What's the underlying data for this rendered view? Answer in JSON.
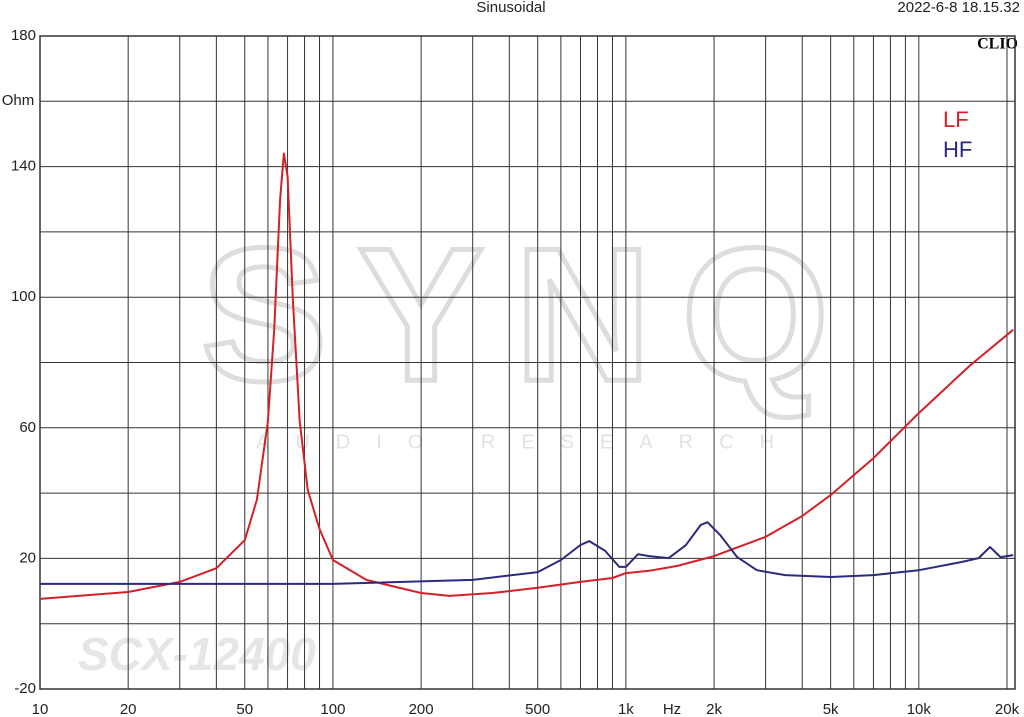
{
  "chart_data": {
    "type": "line",
    "title": "Sinusoidal",
    "timestamp": "2022-6-8 18.15.32",
    "brand": "CLIO",
    "watermark": "SYNQ",
    "watermark_subtitle": "AUDIO RESEARCH",
    "model": "SCX-12400",
    "x_label": "Hz",
    "y_label": "Ohm",
    "xscale": "log",
    "xlim": [
      10,
      21300
    ],
    "ylim": [
      -20,
      180
    ],
    "xticks": [
      10,
      20,
      50,
      100,
      200,
      500,
      {
        "value": 1000,
        "label": "1k"
      },
      {
        "value": 2000,
        "label": "2k"
      },
      {
        "value": 5000,
        "label": "5k"
      },
      {
        "value": 10000,
        "label": "10k"
      },
      {
        "value": 20000,
        "label": "20k"
      }
    ],
    "yticks": [
      -20,
      20,
      60,
      100,
      140,
      180
    ],
    "xgrid": [
      10,
      20,
      30,
      40,
      50,
      60,
      70,
      80,
      90,
      100,
      200,
      300,
      400,
      500,
      600,
      700,
      800,
      900,
      1000,
      2000,
      3000,
      4000,
      5000,
      6000,
      7000,
      8000,
      9000,
      10000,
      20000
    ],
    "ygrid": [
      -20,
      0,
      20,
      40,
      60,
      80,
      100,
      120,
      140,
      160,
      180
    ],
    "legend": "top-right",
    "series": [
      {
        "name": "LF",
        "color": "#d42027",
        "x": [
          10,
          20,
          30,
          40,
          50,
          55,
          60,
          63,
          66,
          68,
          70,
          73,
          77,
          82,
          90,
          100,
          130,
          200,
          250,
          350,
          500,
          700,
          900,
          1000,
          1200,
          1500,
          2000,
          3000,
          4000,
          5000,
          7000,
          10000,
          15000,
          21000
        ],
        "values": [
          7.6,
          9.7,
          12.8,
          17,
          25.6,
          38,
          62,
          90,
          130,
          144,
          137,
          99,
          62,
          41,
          29,
          19.5,
          13.4,
          9.4,
          8.5,
          9.4,
          11,
          12.8,
          14,
          15.5,
          16.2,
          17.7,
          20.7,
          26.6,
          33,
          39.4,
          50.7,
          64.5,
          79.2,
          90
        ]
      },
      {
        "name": "HF",
        "color": "#2b2a7e",
        "x": [
          10,
          100,
          300,
          500,
          600,
          700,
          750,
          850,
          950,
          1000,
          1100,
          1200,
          1400,
          1600,
          1800,
          1900,
          2100,
          2400,
          2800,
          3500,
          5000,
          7000,
          10000,
          14000,
          16000,
          17500,
          19000,
          21000
        ],
        "values": [
          12.2,
          12.2,
          13.4,
          15.8,
          19.5,
          24.1,
          25.3,
          22.3,
          17.4,
          17.4,
          21.3,
          20.7,
          20.1,
          24,
          30.2,
          31.1,
          27.1,
          20.4,
          16.4,
          14.9,
          14.3,
          14.9,
          16.4,
          18.9,
          20.1,
          23.5,
          20.4,
          21
        ]
      }
    ]
  }
}
